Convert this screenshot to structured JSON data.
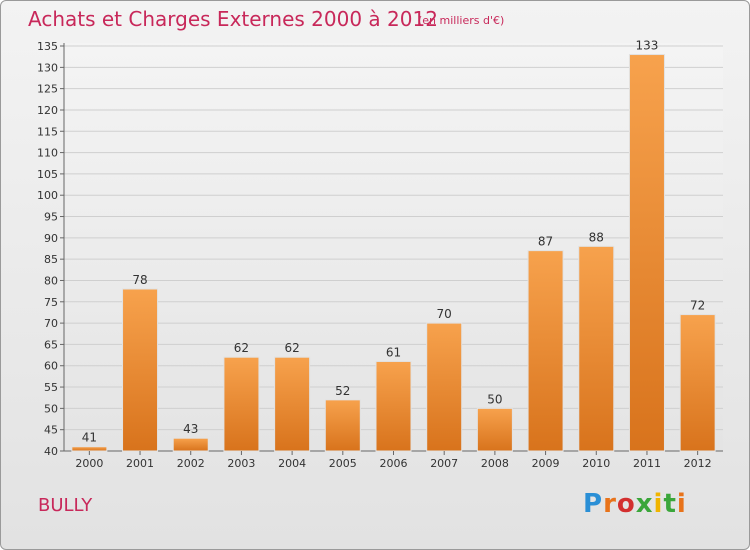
{
  "header": {
    "title": "Achats et Charges Externes 2000 à 2012",
    "subtitle": "(en milliers d'€)"
  },
  "footer": {
    "commune": "BULLY",
    "logo": "Proxiti"
  },
  "colors": {
    "title": "#c8285a",
    "bar_top": "#f7a24d",
    "bar_bottom": "#d8731c"
  },
  "chart_data": {
    "type": "bar",
    "title": "Achats et Charges Externes 2000 à 2012",
    "subtitle": "(en milliers d'€)",
    "categories": [
      "2000",
      "2001",
      "2002",
      "2003",
      "2004",
      "2005",
      "2006",
      "2007",
      "2008",
      "2009",
      "2010",
      "2011",
      "2012"
    ],
    "values": [
      41,
      78,
      43,
      62,
      62,
      52,
      61,
      70,
      50,
      87,
      88,
      133,
      72
    ],
    "data_labels": [
      "41",
      "78",
      "43",
      "62",
      "62",
      "52",
      "61",
      "70",
      "50",
      "87",
      "88",
      "133",
      "72"
    ],
    "ylim": [
      40,
      135
    ],
    "yticks": [
      40,
      45,
      50,
      55,
      60,
      65,
      70,
      75,
      80,
      85,
      90,
      95,
      100,
      105,
      110,
      115,
      120,
      125,
      130,
      135
    ],
    "grid": true
  }
}
